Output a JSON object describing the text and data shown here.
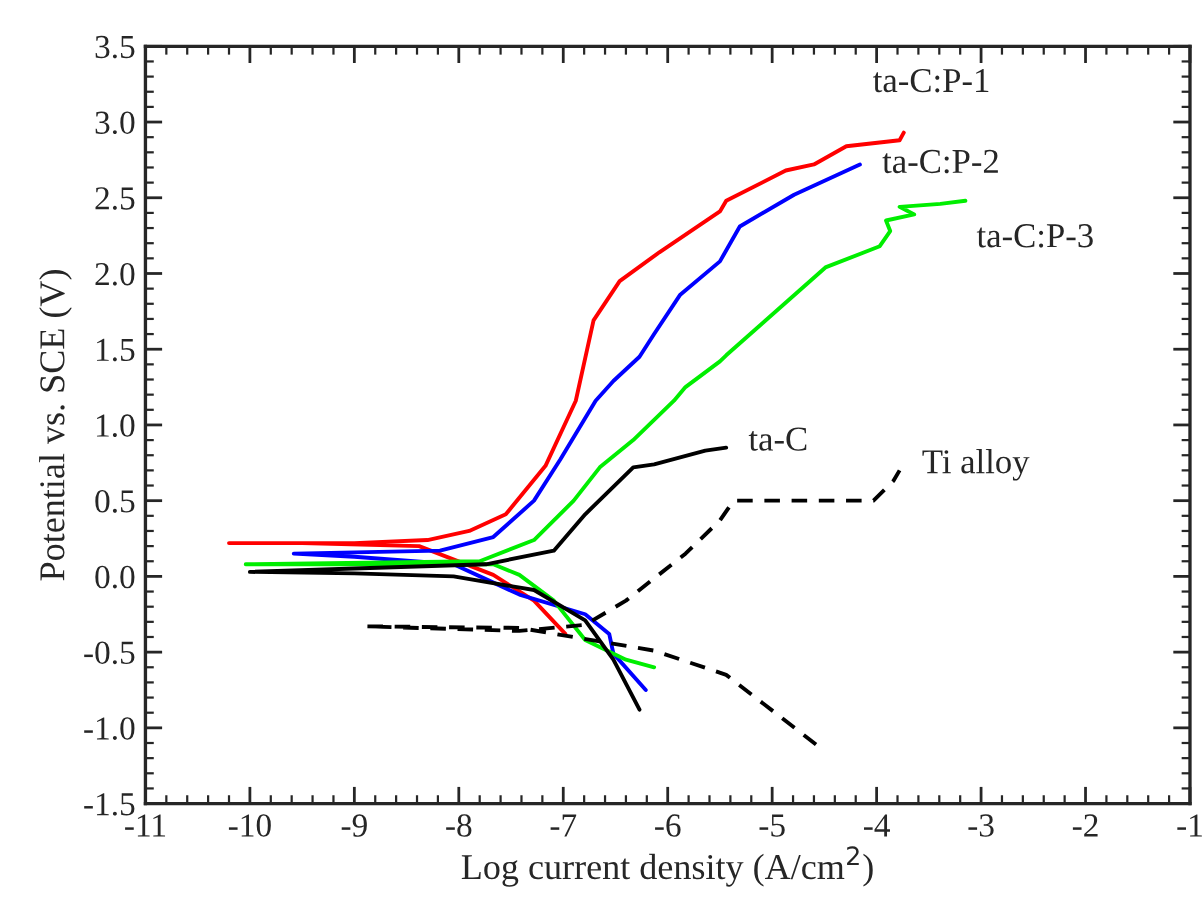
{
  "chart_data": {
    "type": "line",
    "xlabel": "Log current density (A/cm$^{2}$)",
    "ylabel": "Potential vs. SCE (V)",
    "xlim": [
      -11,
      -1
    ],
    "xticks": [
      {
        "value": -11,
        "label": "-11"
      },
      {
        "value": -10,
        "label": "-10"
      },
      {
        "value": -9,
        "label": "-9"
      },
      {
        "value": -8,
        "label": "-8"
      },
      {
        "value": -7,
        "label": "-7"
      },
      {
        "value": -6,
        "label": "-6"
      },
      {
        "value": -5,
        "label": "-5"
      },
      {
        "value": -4,
        "label": "-4"
      },
      {
        "value": -3,
        "label": "-3"
      },
      {
        "value": -2,
        "label": "-2"
      },
      {
        "value": -1,
        "label": "-1"
      }
    ],
    "ylim": [
      -1.5,
      3.5
    ],
    "yticks": [
      {
        "value": -1.5,
        "label": "-1.5"
      },
      {
        "value": -1.0,
        "label": "-1.0"
      },
      {
        "value": -0.5,
        "label": "-0.5"
      },
      {
        "value": 0,
        "label": "0.0"
      },
      {
        "value": 0.5,
        "label": "0.5"
      },
      {
        "value": 1.0,
        "label": "1.0"
      },
      {
        "value": 1.5,
        "label": "1.5"
      },
      {
        "value": 2.0,
        "label": "2.0"
      },
      {
        "value": 2.5,
        "label": "2.5"
      },
      {
        "value": 3.0,
        "label": "3.0"
      },
      {
        "value": 3.5,
        "label": "3.5"
      }
    ],
    "grid": false,
    "legend": false,
    "marker": "none",
    "series": [
      {
        "name": "ta-C:P-1",
        "color": "#ff0000",
        "line_style": "solid",
        "x": [
          -6.98,
          -7.28,
          -7.67,
          -8.38,
          -9.5,
          -10.2,
          -9.0,
          -8.3,
          -7.9,
          -7.55,
          -7.17,
          -6.88,
          -6.71,
          -6.46,
          -6.08,
          -5.5,
          -5.44,
          -4.87,
          -4.6,
          -4.29,
          -3.78,
          -3.74
        ],
        "values": [
          -0.38,
          -0.16,
          0.01,
          0.2,
          0.22,
          0.22,
          0.22,
          0.24,
          0.3,
          0.41,
          0.73,
          1.16,
          1.69,
          1.95,
          2.14,
          2.41,
          2.48,
          2.68,
          2.72,
          2.84,
          2.88,
          2.93
        ]
      },
      {
        "name": "ta-C:P-2",
        "color": "#0000ff",
        "line_style": "solid",
        "x": [
          -6.21,
          -6.52,
          -6.56,
          -6.79,
          -7.42,
          -8.05,
          -9.0,
          -9.58,
          -8.18,
          -7.67,
          -7.28,
          -7.03,
          -6.69,
          -6.52,
          -6.27,
          -6.13,
          -5.88,
          -5.5,
          -5.31,
          -4.79,
          -4.16
        ],
        "values": [
          -0.75,
          -0.51,
          -0.38,
          -0.25,
          -0.12,
          0.08,
          0.13,
          0.15,
          0.17,
          0.26,
          0.5,
          0.77,
          1.16,
          1.29,
          1.45,
          1.6,
          1.86,
          2.08,
          2.31,
          2.52,
          2.72
        ]
      },
      {
        "name": "ta-C:P-3",
        "color": "#00ee00",
        "line_style": "solid",
        "x": [
          -6.13,
          -6.4,
          -6.79,
          -7.09,
          -7.42,
          -7.67,
          -9.0,
          -10.04,
          -7.8,
          -7.28,
          -6.9,
          -6.65,
          -6.33,
          -5.94,
          -5.83,
          -5.5,
          -5.44,
          -4.49,
          -3.97,
          -3.87,
          -3.91,
          -3.64,
          -3.78,
          -3.39,
          -3.15
        ],
        "values": [
          -0.6,
          -0.55,
          -0.42,
          -0.16,
          0.01,
          0.08,
          0.08,
          0.08,
          0.1,
          0.24,
          0.5,
          0.72,
          0.9,
          1.16,
          1.25,
          1.42,
          1.46,
          2.04,
          2.18,
          2.28,
          2.35,
          2.39,
          2.44,
          2.46,
          2.48
        ]
      },
      {
        "name": "ta-C",
        "color": "#000000",
        "line_style": "solid",
        "x": [
          -6.27,
          -6.52,
          -6.79,
          -7.28,
          -8.05,
          -9.0,
          -10.0,
          -7.74,
          -7.09,
          -6.79,
          -6.33,
          -6.13,
          -5.64,
          -5.44
        ],
        "values": [
          -0.88,
          -0.55,
          -0.29,
          -0.09,
          0.0,
          0.02,
          0.03,
          0.08,
          0.17,
          0.41,
          0.72,
          0.74,
          0.83,
          0.85
        ]
      },
      {
        "name": "Ti alloy",
        "color": "#000000",
        "line_style": "dashed",
        "x": [
          -4.58,
          -5.44,
          -6.13,
          -7.42,
          -8.89,
          -7.42,
          -6.79,
          -6.4,
          -5.83,
          -5.5,
          -5.37,
          -4.03,
          -3.84,
          -3.78
        ],
        "values": [
          -1.11,
          -0.65,
          -0.49,
          -0.34,
          -0.33,
          -0.36,
          -0.32,
          -0.16,
          0.15,
          0.37,
          0.5,
          0.5,
          0.63,
          0.7
        ]
      }
    ]
  }
}
